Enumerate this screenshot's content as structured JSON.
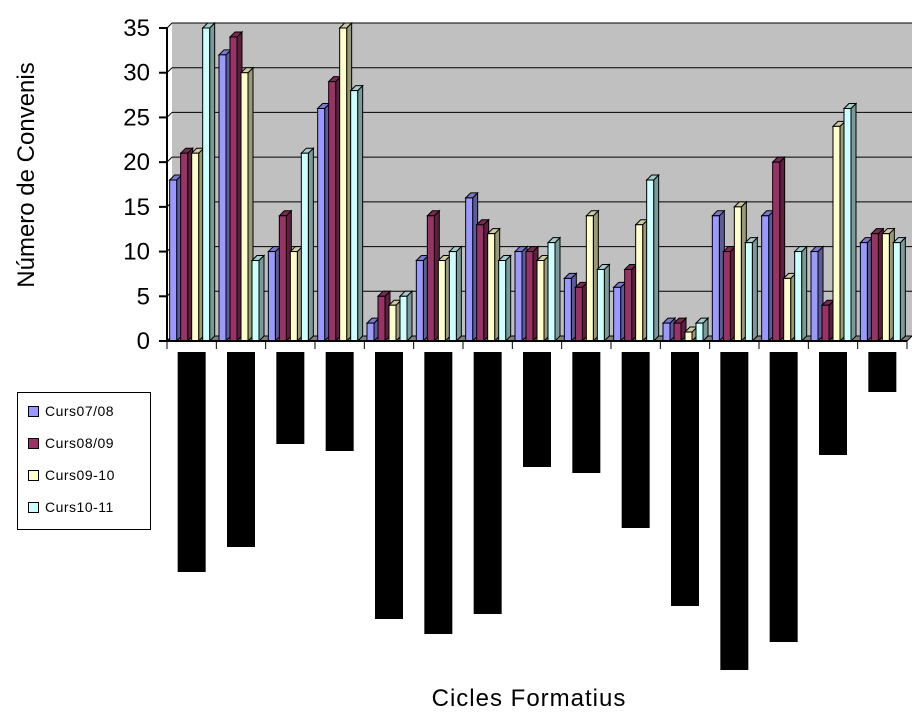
{
  "chart_data": {
    "type": "bar",
    "title": "",
    "xlabel": "Cicles Formatius",
    "ylabel": "Número de Convenis",
    "ylim": [
      0,
      35
    ],
    "yticks": [
      0,
      5,
      10,
      15,
      20,
      25,
      30,
      35
    ],
    "grid": true,
    "legend_position": "left",
    "categories": [
      "",
      "",
      "",
      "",
      "",
      "",
      "",
      "",
      "",
      "",
      "",
      "",
      "",
      "",
      ""
    ],
    "series": [
      {
        "name": "Curs07/08",
        "color": "#9999ff",
        "values": [
          18,
          32,
          10,
          26,
          2,
          9,
          16,
          10,
          7,
          6,
          2,
          14,
          14,
          10,
          11
        ]
      },
      {
        "name": "Curs08/09",
        "color": "#993366",
        "values": [
          21,
          34,
          14,
          29,
          5,
          14,
          13,
          10,
          6,
          8,
          2,
          10,
          20,
          4,
          12
        ]
      },
      {
        "name": "Curs09-10",
        "color": "#ffffcc",
        "values": [
          21,
          30,
          10,
          35,
          4,
          9,
          12,
          9,
          14,
          13,
          1,
          15,
          7,
          24,
          12
        ]
      },
      {
        "name": "Curs10-11",
        "color": "#ccffff",
        "values": [
          35,
          9,
          21,
          28,
          5,
          10,
          9,
          11,
          8,
          18,
          2,
          11,
          10,
          26,
          11
        ]
      }
    ],
    "category_label_blocks": [
      220,
      195,
      92,
      99,
      267,
      282,
      262,
      115,
      121,
      176,
      254,
      318,
      290,
      103,
      40
    ],
    "colors": {
      "plot_background": "#c0c0c0",
      "gridline": "#000000",
      "label_block": "#000000"
    }
  }
}
